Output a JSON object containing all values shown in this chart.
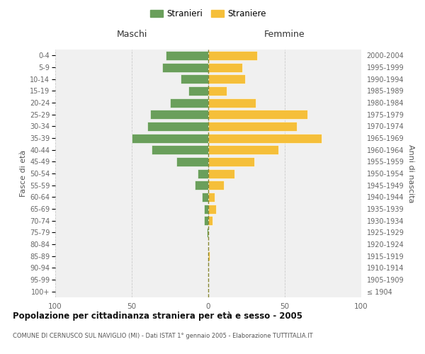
{
  "age_groups": [
    "100+",
    "95-99",
    "90-94",
    "85-89",
    "80-84",
    "75-79",
    "70-74",
    "65-69",
    "60-64",
    "55-59",
    "50-54",
    "45-49",
    "40-44",
    "35-39",
    "30-34",
    "25-29",
    "20-24",
    "15-19",
    "10-14",
    "5-9",
    "0-4"
  ],
  "birth_years": [
    "≤ 1904",
    "1905-1909",
    "1910-1914",
    "1915-1919",
    "1920-1924",
    "1925-1929",
    "1930-1934",
    "1935-1939",
    "1940-1944",
    "1945-1949",
    "1950-1954",
    "1955-1959",
    "1960-1964",
    "1965-1969",
    "1970-1974",
    "1975-1979",
    "1980-1984",
    "1985-1989",
    "1990-1994",
    "1995-1999",
    "2000-2004"
  ],
  "maschi": [
    0,
    0,
    0,
    0,
    0,
    1,
    3,
    3,
    4,
    9,
    7,
    21,
    37,
    50,
    40,
    38,
    25,
    13,
    18,
    30,
    28
  ],
  "femmine": [
    0,
    0,
    0,
    1,
    0,
    0,
    3,
    5,
    4,
    10,
    17,
    30,
    46,
    74,
    58,
    65,
    31,
    12,
    24,
    22,
    32
  ],
  "color_maschi": "#6a9f5b",
  "color_femmine": "#f5bf3a",
  "title": "Popolazione per cittadinanza straniera per età e sesso - 2005",
  "subtitle": "COMUNE DI CERNUSCO SUL NAVIGLIO (MI) - Dati ISTAT 1° gennaio 2005 - Elaborazione TUTTITALIA.IT",
  "header_left": "Maschi",
  "header_right": "Femmine",
  "ylabel_left": "Fasce di età",
  "ylabel_right": "Anni di nascita",
  "legend_maschi": "Stranieri",
  "legend_femmine": "Straniere",
  "xlim": 100,
  "background_color": "#f0f0f0",
  "grid_color": "#cccccc"
}
